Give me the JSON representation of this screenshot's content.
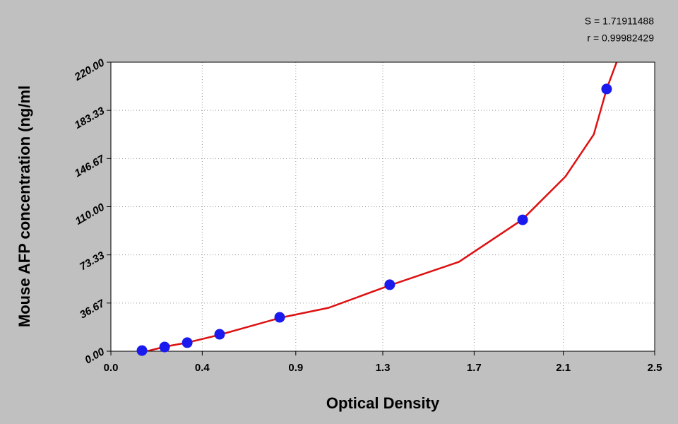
{
  "chart_data": {
    "type": "scatter",
    "annotations": [
      "S = 1.71911488",
      "r = 0.99982429"
    ],
    "xlabel": "Optical Density",
    "ylabel": "Mouse  AFP concentration (ng/ml",
    "xlim": [
      0,
      2.5
    ],
    "xticks": [
      {
        "value": 0,
        "label": "0.0"
      },
      {
        "value": 0.42,
        "label": "0.4"
      },
      {
        "value": 0.85,
        "label": "0.9"
      },
      {
        "value": 1.25,
        "label": "1.3"
      },
      {
        "value": 1.67,
        "label": "1.7"
      },
      {
        "value": 2.08,
        "label": "2.1"
      },
      2.5
    ],
    "ylim": [
      0,
      220
    ],
    "yticks": [
      {
        "value": 0,
        "label": "0.00"
      },
      36.67,
      73.33,
      {
        "value": 110,
        "label": "110.00"
      },
      146.67,
      183.33,
      {
        "value": 220,
        "label": "220.00"
      }
    ],
    "grid": true,
    "series": [
      {
        "style": "line",
        "color": "#dd1111",
        "x": [
          0.166,
          0.25,
          0.35,
          0.5,
          0.78,
          1.0,
          1.28,
          1.6,
          1.89,
          2.09,
          2.22,
          2.28,
          2.334
        ],
        "values": [
          0,
          3.5,
          6.5,
          12.5,
          25.5,
          33,
          50,
          68,
          100,
          133,
          165,
          200,
          224
        ]
      },
      {
        "style": "marker",
        "color": "#1a1aee",
        "x": [
          0.143,
          0.247,
          0.351,
          0.5,
          0.776,
          1.282,
          1.893,
          2.279
        ],
        "values": [
          0.5,
          3.2,
          6.5,
          12.9,
          25.8,
          50.6,
          100,
          199.6
        ]
      }
    ]
  }
}
